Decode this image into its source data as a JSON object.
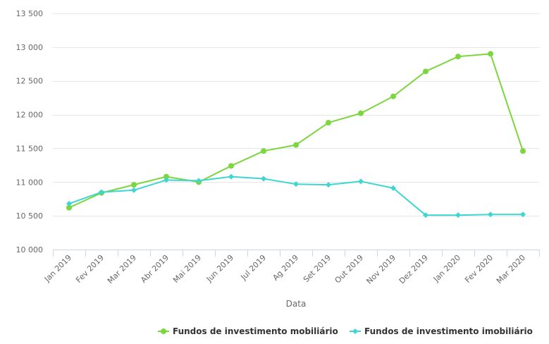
{
  "chart_data": {
    "type": "line",
    "xlabel": "Data",
    "ylabel": "",
    "categories": [
      "Jan 2019",
      "Fev 2019",
      "Mar 2019",
      "Abr 2019",
      "Mai 2019",
      "Jun 2019",
      "Jul 2019",
      "Ag 2019",
      "Set 2019",
      "Out 2019",
      "Nov 2019",
      "Dez 2019",
      "Jan 2020",
      "Fev 2020",
      "Mar 2020"
    ],
    "ylim": [
      10000,
      13500
    ],
    "yticks": [
      10000,
      10500,
      11000,
      11500,
      12000,
      12500,
      13000,
      13500
    ],
    "ytick_labels": [
      "10 000",
      "10 500",
      "11 000",
      "11 500",
      "12 000",
      "12 500",
      "13 000",
      "13 500"
    ],
    "grid": true,
    "legend_position": "bottom-right",
    "series": [
      {
        "name": "Fundos de investimento mobiliário",
        "color": "#7cd63e",
        "marker": "circle",
        "values": [
          10620,
          10840,
          10960,
          11080,
          11000,
          11240,
          11460,
          11550,
          11880,
          12020,
          12270,
          12640,
          12860,
          12900,
          11460
        ]
      },
      {
        "name": "Fundos de investimento imobiliário",
        "color": "#3ed6d0",
        "marker": "diamond",
        "values": [
          10680,
          10850,
          10880,
          11030,
          11020,
          11080,
          11050,
          10970,
          10960,
          11010,
          10910,
          10510,
          10510,
          10520,
          10520
        ]
      }
    ]
  }
}
